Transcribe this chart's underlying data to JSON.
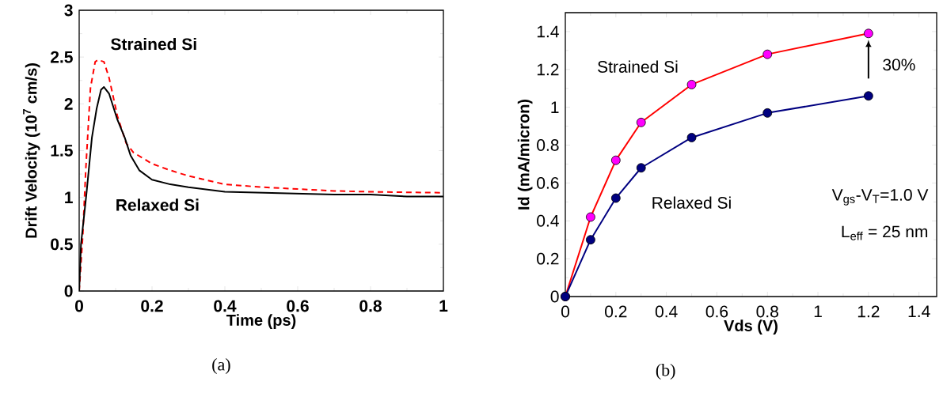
{
  "chart_data": [
    {
      "type": "line",
      "xlabel": "Time (ps)",
      "ylabel": "Drift Velocity (10$^{7}$ cm/s)",
      "xlim": [
        0,
        1
      ],
      "ylim": [
        0,
        3
      ],
      "xticks": [
        0,
        0.2,
        0.4,
        0.6,
        0.8,
        1
      ],
      "yticks": [
        0,
        0.5,
        1,
        1.5,
        2,
        2.5,
        3
      ],
      "grid": false,
      "marker": "none",
      "series": [
        {
          "name": "Strained Si",
          "color": "#ff0000",
          "line_style": "dashed",
          "x": [
            0,
            0.01,
            0.018,
            0.031,
            0.044,
            0.052,
            0.068,
            0.082,
            0.105,
            0.129,
            0.149,
            0.2,
            0.25,
            0.3,
            0.4,
            0.5,
            0.6,
            0.7,
            0.8,
            1
          ],
          "values": [
            0,
            0.6,
            1.29,
            2.17,
            2.45,
            2.47,
            2.45,
            2.28,
            1.87,
            1.58,
            1.48,
            1.36,
            1.29,
            1.23,
            1.14,
            1.11,
            1.09,
            1.07,
            1.06,
            1.05
          ]
        },
        {
          "name": "Relaxed Si",
          "color": "#000000",
          "line_style": "solid",
          "x": [
            0,
            0.005,
            0.02,
            0.035,
            0.048,
            0.06,
            0.068,
            0.082,
            0.105,
            0.125,
            0.141,
            0.165,
            0.2,
            0.25,
            0.3,
            0.4,
            0.5,
            0.6,
            0.7,
            0.8,
            0.9,
            1
          ],
          "values": [
            0,
            0.5,
            1.04,
            1.64,
            1.95,
            2.15,
            2.18,
            2.11,
            1.83,
            1.64,
            1.45,
            1.29,
            1.19,
            1.14,
            1.11,
            1.06,
            1.05,
            1.04,
            1.03,
            1.03,
            1.01,
            1.01
          ]
        }
      ],
      "annotations": [
        "(a)"
      ]
    },
    {
      "type": "line",
      "xlabel": "Vds (V)",
      "ylabel": "Id (mA/micron)",
      "xlim": [
        0,
        1.47
      ],
      "ylim": [
        0,
        1.5
      ],
      "xticks": [
        0,
        0.2,
        0.4,
        0.6,
        0.8,
        1,
        1.2,
        1.4
      ],
      "yticks": [
        0,
        0.2,
        0.4,
        0.6,
        0.8,
        1,
        1.2,
        1.4
      ],
      "grid": false,
      "marker": "circle",
      "line_style": "solid",
      "series": [
        {
          "name": "Strained Si",
          "color": "#ff0000",
          "colors": [
            "#ff00ff",
            "#ff00ff",
            "#ff00ff",
            "#ff00ff",
            "#ff00ff",
            "#ff00ff",
            "#ff00ff"
          ],
          "x": [
            0,
            0.1,
            0.2,
            0.3,
            0.5,
            0.8,
            1.2
          ],
          "values": [
            0,
            0.42,
            0.72,
            0.92,
            1.12,
            1.28,
            1.39
          ]
        },
        {
          "name": "Relaxed Si",
          "color": "#000080",
          "colors": [
            "#000080",
            "#000080",
            "#000080",
            "#000080",
            "#000080",
            "#000080",
            "#000080"
          ],
          "x": [
            0,
            0.1,
            0.2,
            0.3,
            0.5,
            0.8,
            1.2
          ],
          "values": [
            0,
            0.3,
            0.52,
            0.68,
            0.84,
            0.97,
            1.06
          ]
        }
      ],
      "annotations": [
        "30%",
        "V$_{gs}$-V$_{T}$=1.0 V",
        "L$_{eff}$ = 25 nm",
        "(b)"
      ]
    }
  ]
}
